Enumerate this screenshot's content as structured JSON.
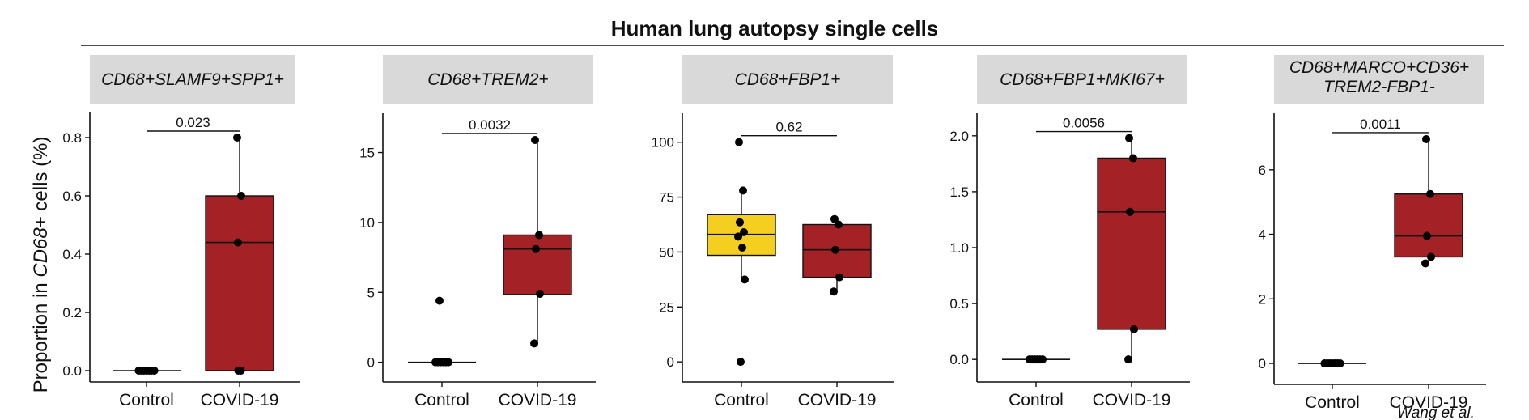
{
  "colors": {
    "control": "#f5cf1f",
    "covid": "#a42126",
    "strip": "#d9d9d9",
    "points": "#000000"
  },
  "chart_data": {
    "title": "Human lung autopsy single cells",
    "ylabel_prefix": "Proportion in ",
    "ylabel_italic": "CD68",
    "ylabel_suffix": "+ cells (%)",
    "footnote": "Wang et al.",
    "panels": [
      {
        "type": "box",
        "strip": [
          "CD68+SLAMF9+SPP1+"
        ],
        "categories": [
          "Control",
          "COVID-19"
        ],
        "ylim": [
          0,
          0.85
        ],
        "yticks": [
          0.0,
          0.2,
          0.4,
          0.6,
          0.8
        ],
        "ytick_labels": [
          "0.0",
          "0.2",
          "0.4",
          "0.6",
          "0.8"
        ],
        "pvalue": "0.023",
        "groups": [
          {
            "name": "Control",
            "color": "control",
            "box": {
              "q1": 0,
              "median": 0,
              "q3": 0,
              "whisker_low": 0,
              "whisker_high": 0
            },
            "points": [
              0,
              0,
              0,
              0,
              0,
              0,
              0
            ]
          },
          {
            "name": "COVID-19",
            "color": "covid",
            "box": {
              "q1": 0,
              "median": 0.44,
              "q3": 0.6,
              "whisker_low": 0,
              "whisker_high": 0.8
            },
            "points": [
              0.8,
              0.6,
              0.44,
              0,
              0
            ]
          }
        ]
      },
      {
        "type": "box",
        "strip": [
          "CD68+TREM2+"
        ],
        "categories": [
          "Control",
          "COVID-19"
        ],
        "ylim": [
          -0.6,
          17
        ],
        "yticks": [
          0,
          5,
          10,
          15
        ],
        "ytick_labels": [
          "0",
          "5",
          "10",
          "15"
        ],
        "pvalue": "0.0032",
        "groups": [
          {
            "name": "Control",
            "color": "control",
            "box": {
              "q1": 0,
              "median": 0,
              "q3": 0,
              "whisker_low": 0,
              "whisker_high": 0
            },
            "points": [
              4.4,
              0,
              0,
              0,
              0,
              0,
              0
            ]
          },
          {
            "name": "COVID-19",
            "color": "covid",
            "box": {
              "q1": 4.85,
              "median": 8.1,
              "q3": 9.1,
              "whisker_low": 1.35,
              "whisker_high": 15.9
            },
            "points": [
              15.9,
              9.1,
              8.1,
              4.9,
              1.35
            ]
          }
        ]
      },
      {
        "type": "box",
        "strip": [
          "CD68+FBP1+"
        ],
        "categories": [
          "Control",
          "COVID-19"
        ],
        "ylim": [
          -4,
          108
        ],
        "yticks": [
          0,
          25,
          50,
          75,
          100
        ],
        "ytick_labels": [
          "0",
          "25",
          "50",
          "75",
          "100"
        ],
        "pvalue": "0.62",
        "groups": [
          {
            "name": "Control",
            "color": "control",
            "box": {
              "q1": 48.5,
              "median": 58,
              "q3": 67,
              "whisker_low": 37.5,
              "whisker_high": 78
            },
            "points": [
              100,
              78,
              63.5,
              59,
              57,
              52,
              37.5,
              0
            ]
          },
          {
            "name": "COVID-19",
            "color": "covid",
            "box": {
              "q1": 38.5,
              "median": 51,
              "q3": 62.5,
              "whisker_low": 32,
              "whisker_high": 65
            },
            "points": [
              65,
              62.5,
              51,
              38.5,
              32
            ]
          }
        ]
      },
      {
        "type": "box",
        "strip": [
          "CD68+FBP1+MKI67+"
        ],
        "categories": [
          "Control",
          "COVID-19"
        ],
        "ylim": [
          -0.1,
          2.1
        ],
        "yticks": [
          0.0,
          0.5,
          1.0,
          1.5,
          2.0
        ],
        "ytick_labels": [
          "0.0",
          "0.5",
          "1.0",
          "1.5",
          "2.0"
        ],
        "pvalue": "0.0056",
        "groups": [
          {
            "name": "Control",
            "color": "control",
            "box": {
              "q1": 0,
              "median": 0,
              "q3": 0,
              "whisker_low": 0,
              "whisker_high": 0
            },
            "points": [
              0,
              0,
              0,
              0,
              0,
              0
            ]
          },
          {
            "name": "COVID-19",
            "color": "covid",
            "box": {
              "q1": 0.27,
              "median": 1.32,
              "q3": 1.8,
              "whisker_low": 0,
              "whisker_high": 1.98
            },
            "points": [
              1.98,
              1.8,
              1.32,
              0.27,
              0
            ]
          }
        ]
      },
      {
        "type": "box",
        "strip": [
          "CD68+MARCO+CD36+",
          "TREM2-FBP1-"
        ],
        "categories": [
          "Control",
          "COVID-19"
        ],
        "ylim": [
          -0.3,
          7.4
        ],
        "yticks": [
          0,
          2,
          4,
          6
        ],
        "ytick_labels": [
          "0",
          "2",
          "4",
          "6"
        ],
        "pvalue": "0.0011",
        "groups": [
          {
            "name": "Control",
            "color": "control",
            "box": {
              "q1": 0,
              "median": 0,
              "q3": 0,
              "whisker_low": 0,
              "whisker_high": 0
            },
            "points": [
              0,
              0,
              0,
              0,
              0,
              0,
              0
            ]
          },
          {
            "name": "COVID-19",
            "color": "covid",
            "box": {
              "q1": 3.3,
              "median": 3.95,
              "q3": 5.25,
              "whisker_low": 3.1,
              "whisker_high": 6.95
            },
            "points": [
              6.95,
              5.25,
              3.95,
              3.3,
              3.1
            ]
          }
        ]
      }
    ]
  }
}
